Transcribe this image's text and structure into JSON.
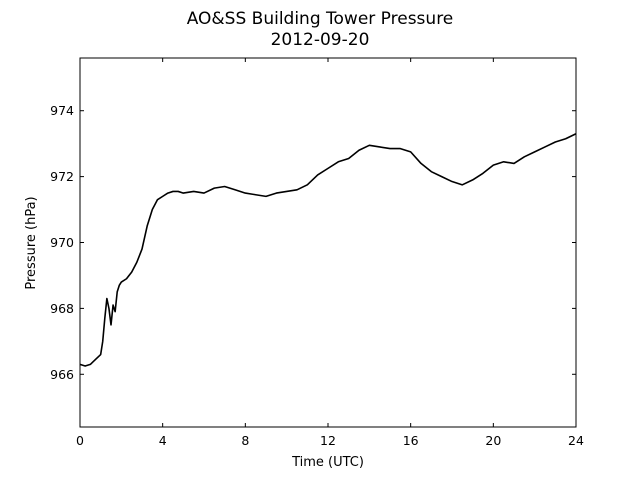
{
  "chart_data": {
    "type": "line",
    "title": "AO&SS Building Tower Pressure",
    "subtitle": "2012-09-20",
    "xlabel": "Time (UTC)",
    "ylabel": "Pressure (hPa)",
    "xlim": [
      0,
      24
    ],
    "ylim": [
      964.4,
      975.6
    ],
    "xticks": [
      0,
      4,
      8,
      12,
      16,
      20,
      24
    ],
    "yticks": [
      966,
      968,
      970,
      972,
      974
    ],
    "grid": false,
    "line_color": "#000000",
    "series": [
      {
        "x": [
          0,
          0.25,
          0.5,
          0.75,
          1.0,
          1.1,
          1.2,
          1.3,
          1.4,
          1.5,
          1.6,
          1.7,
          1.8,
          1.9,
          2.0,
          2.25,
          2.5,
          2.75,
          3.0,
          3.25,
          3.5,
          3.75,
          4.0,
          4.25,
          4.5,
          4.75,
          5.0,
          5.5,
          6.0,
          6.5,
          7.0,
          7.5,
          8.0,
          8.5,
          9.0,
          9.5,
          10.0,
          10.5,
          11.0,
          11.5,
          12.0,
          12.5,
          13.0,
          13.5,
          14.0,
          14.5,
          15.0,
          15.5,
          16.0,
          16.5,
          17.0,
          17.5,
          18.0,
          18.5,
          19.0,
          19.5,
          20.0,
          20.5,
          21.0,
          21.5,
          22.0,
          22.5,
          23.0,
          23.5,
          24.0
        ],
        "y": [
          966.3,
          966.25,
          966.3,
          966.45,
          966.6,
          967.0,
          967.7,
          968.3,
          968.0,
          967.5,
          968.1,
          967.9,
          968.5,
          968.7,
          968.8,
          968.9,
          969.1,
          969.4,
          969.8,
          970.5,
          971.0,
          971.3,
          971.4,
          971.5,
          971.55,
          971.55,
          971.5,
          971.55,
          971.5,
          971.65,
          971.7,
          971.6,
          971.5,
          971.45,
          971.4,
          971.5,
          971.55,
          971.6,
          971.75,
          972.05,
          972.25,
          972.45,
          972.55,
          972.8,
          972.95,
          972.9,
          972.85,
          972.85,
          972.75,
          972.4,
          972.15,
          972.0,
          971.85,
          971.75,
          971.9,
          972.1,
          972.35,
          972.45,
          972.4,
          972.6,
          972.75,
          972.9,
          973.05,
          973.15,
          973.3
        ]
      }
    ]
  }
}
